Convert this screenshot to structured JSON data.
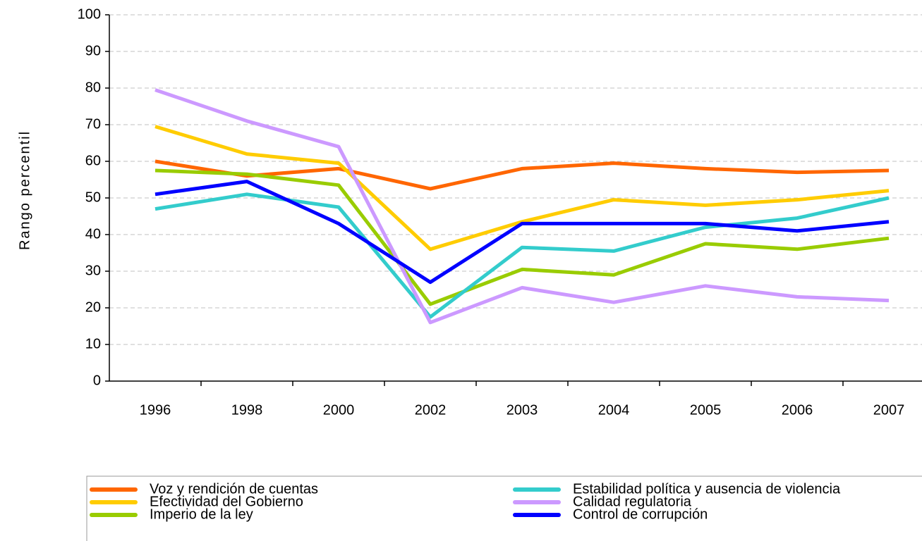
{
  "chart_data": {
    "type": "line",
    "y_label": "Rango percentil",
    "categories": [
      "1996",
      "1998",
      "2000",
      "2002",
      "2003",
      "2004",
      "2005",
      "2006",
      "2007"
    ],
    "series": [
      {
        "name": "Voz y rendición de cuentas",
        "color": "#ff6600",
        "values": [
          60,
          56,
          58,
          52.5,
          58,
          59.5,
          58,
          57,
          57.5
        ]
      },
      {
        "name": "Efectividad del Gobierno",
        "color": "#ffcc00",
        "values": [
          69.5,
          62,
          59.5,
          36,
          43.5,
          49.5,
          48,
          49.5,
          52
        ]
      },
      {
        "name": "Imperio de la ley",
        "color": "#99cc00",
        "values": [
          57.5,
          56.5,
          53.5,
          21,
          30.5,
          29,
          37.5,
          36,
          39
        ]
      },
      {
        "name": "Estabilidad política y ausencia de violencia",
        "color": "#33cccc",
        "values": [
          47,
          51,
          47.5,
          17.5,
          36.5,
          35.5,
          42,
          44.5,
          50
        ]
      },
      {
        "name": "Calidad regulatoria",
        "color": "#cc99ff",
        "values": [
          79.5,
          71,
          64,
          16,
          25.5,
          21.5,
          26,
          23,
          22
        ]
      },
      {
        "name": "Control de corrupción",
        "color": "#0000ff",
        "values": [
          51,
          54.5,
          43,
          27,
          43,
          43,
          43,
          41,
          43.5
        ]
      }
    ],
    "ylim": [
      0,
      100
    ],
    "yticks": [
      0,
      10,
      20,
      30,
      40,
      50,
      60,
      70,
      80,
      90,
      100
    ],
    "grid": true
  }
}
